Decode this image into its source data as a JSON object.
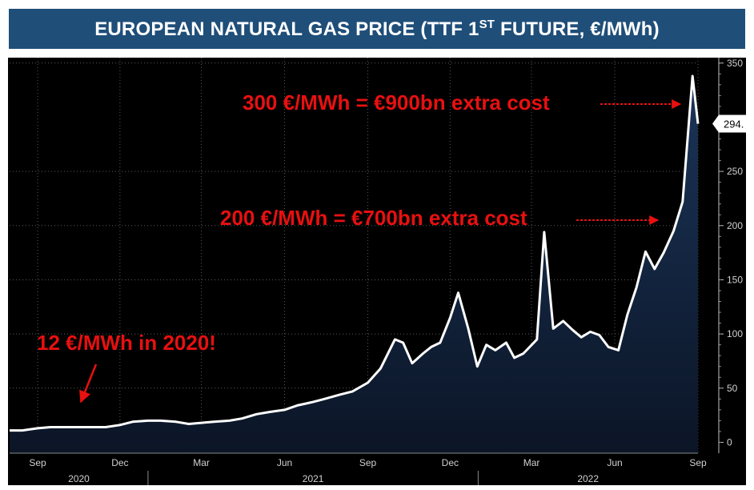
{
  "title": {
    "pre": "EUROPEAN NATURAL GAS PRICE (TTF 1",
    "sup": "ST",
    "post": " FUTURE, €/MWh)"
  },
  "annotations": {
    "top": "300 €/MWh = €900bn extra cost",
    "mid": "200 €/MWh = €700bn extra cost",
    "low": "12 €/MWh in 2020!"
  },
  "colors": {
    "panel": "#000000",
    "area_top": "#1b3458",
    "area_bottom": "#0b1526",
    "line": "#ffffff",
    "annotation": "#e81010",
    "axis_text": "#d0d0d0"
  },
  "chart_data": {
    "type": "area",
    "ylabel": "",
    "ylim": [
      -10,
      355
    ],
    "y_ticks": [
      "0",
      "50",
      "100",
      "150",
      "200",
      "250",
      "350"
    ],
    "last_value_label": "294.",
    "x_month_labels": [
      "Sep",
      "Dec",
      "Mar",
      "Jun",
      "Sep",
      "Dec",
      "Mar",
      "Jun",
      "Sep"
    ],
    "x_year_labels": [
      "2020",
      "2021",
      "2022"
    ],
    "x_start": "2020-08",
    "x_end": "2022-09",
    "x_tick_dates": [
      "2020-09",
      "2020-12",
      "2021-03",
      "2021-06",
      "2021-09",
      "2021-12",
      "2022-03",
      "2022-06",
      "2022-09"
    ],
    "year_boundaries": [
      "2021-01",
      "2022-01"
    ],
    "series": [
      {
        "x": [
          "2020-08-01",
          "2020-08-15",
          "2020-09-01",
          "2020-09-15",
          "2020-10-01",
          "2020-10-15",
          "2020-11-01",
          "2020-11-15",
          "2020-12-01",
          "2020-12-15",
          "2021-01-01",
          "2021-01-15",
          "2021-02-01",
          "2021-02-15",
          "2021-03-01",
          "2021-03-15",
          "2021-04-01",
          "2021-04-15",
          "2021-05-01",
          "2021-05-15",
          "2021-06-01",
          "2021-06-15",
          "2021-07-01",
          "2021-07-15",
          "2021-08-01",
          "2021-08-15",
          "2021-09-01",
          "2021-09-15",
          "2021-10-01",
          "2021-10-10",
          "2021-10-20",
          "2021-11-01",
          "2021-11-10",
          "2021-11-20",
          "2021-12-01",
          "2021-12-10",
          "2021-12-21",
          "2021-12-31",
          "2022-01-10",
          "2022-01-20",
          "2022-02-01",
          "2022-02-10",
          "2022-02-20",
          "2022-03-07",
          "2022-03-15",
          "2022-03-25",
          "2022-04-05",
          "2022-04-15",
          "2022-04-25",
          "2022-05-05",
          "2022-05-15",
          "2022-05-25",
          "2022-06-05",
          "2022-06-15",
          "2022-06-25",
          "2022-07-05",
          "2022-07-15",
          "2022-07-25",
          "2022-08-05",
          "2022-08-15",
          "2022-08-26",
          "2022-09-01"
        ],
        "values": [
          11,
          11,
          13,
          14,
          14,
          14,
          14,
          14,
          16,
          19,
          20,
          20,
          19,
          17,
          18,
          19,
          20,
          22,
          26,
          28,
          30,
          34,
          37,
          40,
          44,
          47,
          55,
          68,
          95,
          92,
          73,
          82,
          88,
          92,
          115,
          138,
          105,
          70,
          90,
          85,
          92,
          78,
          82,
          95,
          194,
          105,
          112,
          104,
          97,
          102,
          99,
          88,
          85,
          118,
          143,
          176,
          160,
          175,
          195,
          222,
          338,
          294
        ]
      }
    ]
  }
}
